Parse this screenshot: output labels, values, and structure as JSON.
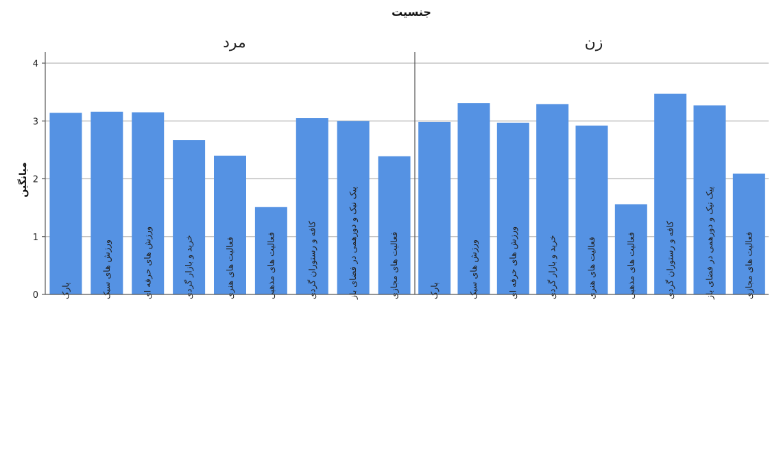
{
  "chart_data": {
    "type": "bar",
    "title": "جنسیت",
    "ylabel": "میانگین",
    "xlabel": "",
    "ylim": [
      0,
      4
    ],
    "yticks": [
      0,
      1,
      2,
      3,
      4
    ],
    "grid": true,
    "bar_color": "#5592e3",
    "categories": [
      "پارک",
      "ورزش های سبک",
      "ورزش های حرفه ای",
      "خرید و بازار گردی",
      "فعالیت های هنری",
      "فعالیت های مذهبی",
      "کافه و رستوران گردی",
      "پیک نیک و دورهمی در فضای باز",
      "فعالیت های مجازی"
    ],
    "panels": [
      {
        "name": "مرد",
        "values": [
          3.14,
          3.16,
          3.15,
          2.67,
          2.4,
          1.51,
          3.05,
          3.0,
          2.39
        ]
      },
      {
        "name": "زن",
        "values": [
          2.98,
          3.31,
          2.97,
          3.29,
          2.92,
          1.56,
          3.47,
          3.27,
          2.09
        ]
      }
    ]
  }
}
